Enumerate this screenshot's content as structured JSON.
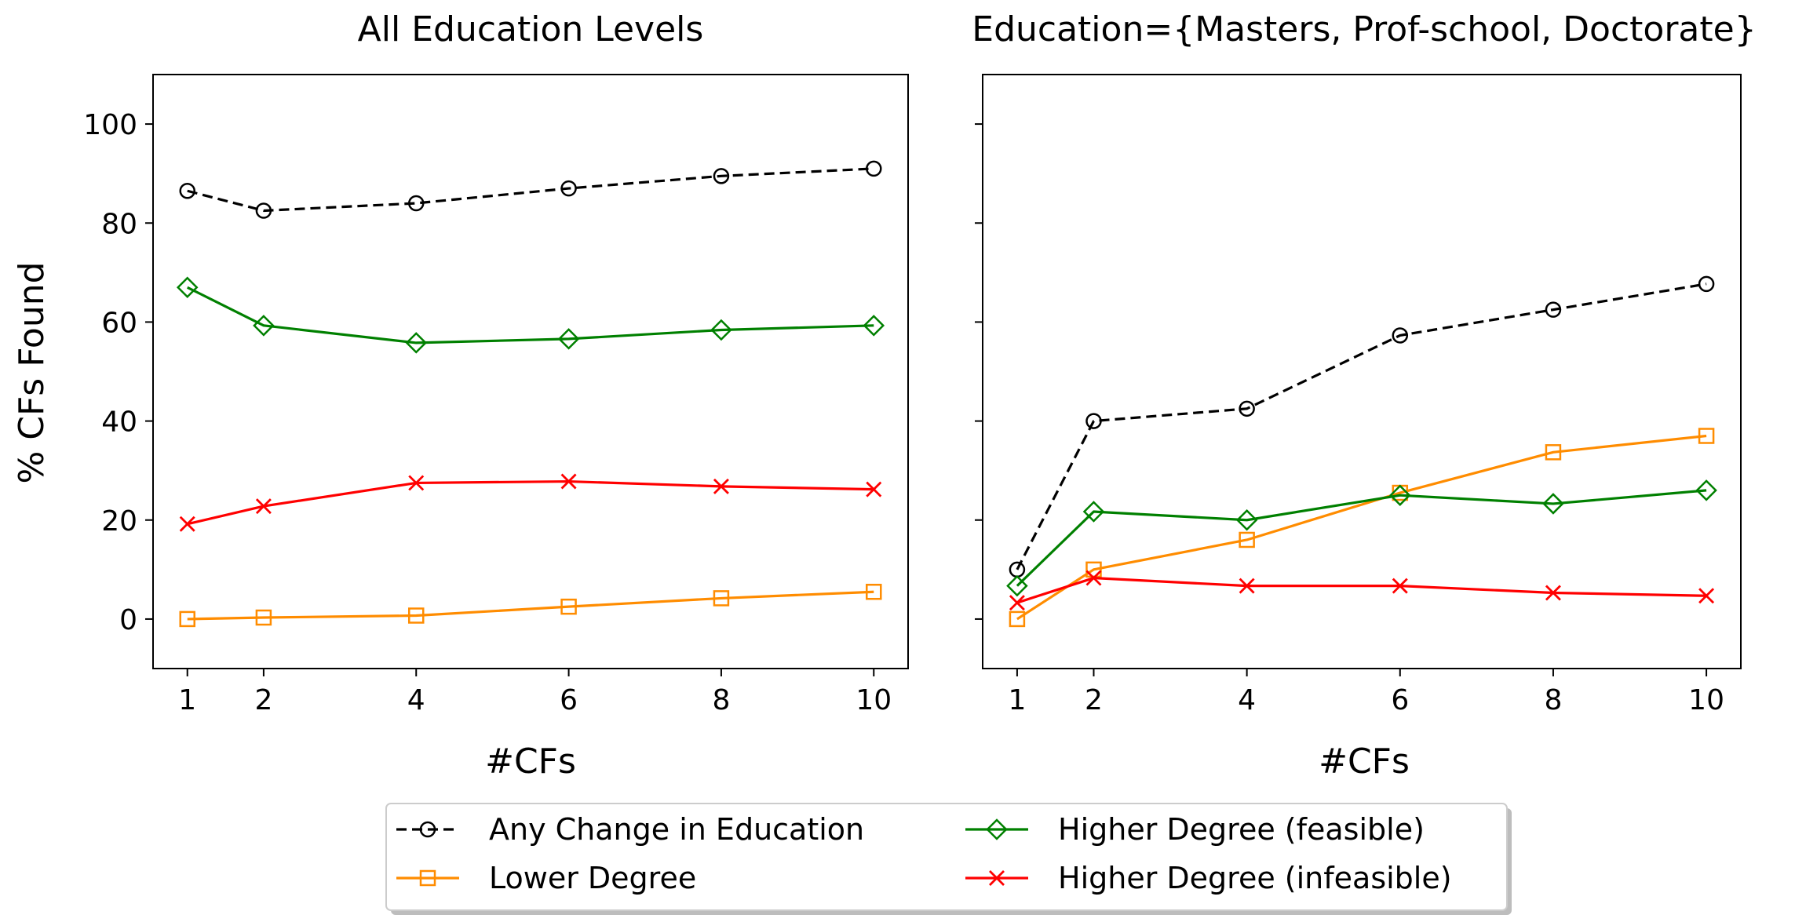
{
  "chart_data": [
    {
      "type": "line",
      "title": "All Education Levels",
      "xlabel": "#CFs",
      "ylabel": "% CFs Found",
      "x": [
        1,
        2,
        4,
        6,
        8,
        10
      ],
      "xticks": [
        "1",
        "2",
        "4",
        "6",
        "8",
        "10"
      ],
      "yticks": [
        "0",
        "20",
        "40",
        "60",
        "80",
        "100"
      ],
      "ylim": [
        -10,
        110
      ],
      "grid": false,
      "series": [
        {
          "name": "Any Change in Education",
          "color": "#000000",
          "marker": "circle",
          "dashed": true,
          "values": [
            86.5,
            82.5,
            84,
            87,
            89.5,
            91
          ]
        },
        {
          "name": "Lower Degree",
          "color": "#ff8c00",
          "marker": "square",
          "dashed": false,
          "values": [
            0,
            0.3,
            0.7,
            2.5,
            4.2,
            5.5
          ]
        },
        {
          "name": "Higher Degree (feasible)",
          "color": "#008000",
          "marker": "diamond",
          "dashed": false,
          "values": [
            67,
            59.3,
            55.8,
            56.6,
            58.4,
            59.3
          ]
        },
        {
          "name": "Higher Degree (infeasible)",
          "color": "#ff0000",
          "marker": "x",
          "dashed": false,
          "values": [
            19.2,
            22.8,
            27.5,
            27.8,
            26.8,
            26.2
          ]
        }
      ]
    },
    {
      "type": "line",
      "title": "Education={Masters, Prof-school, Doctorate}",
      "xlabel": "#CFs",
      "ylabel": "",
      "x": [
        1,
        2,
        4,
        6,
        8,
        10
      ],
      "xticks": [
        "1",
        "2",
        "4",
        "6",
        "8",
        "10"
      ],
      "yticks": [
        "0",
        "20",
        "40",
        "60",
        "80",
        "100"
      ],
      "ylim": [
        -10,
        110
      ],
      "grid": false,
      "series": [
        {
          "name": "Any Change in Education",
          "color": "#000000",
          "marker": "circle",
          "dashed": true,
          "values": [
            10,
            40,
            42.5,
            57.3,
            62.5,
            67.7
          ]
        },
        {
          "name": "Lower Degree",
          "color": "#ff8c00",
          "marker": "square",
          "dashed": false,
          "values": [
            0,
            10,
            16,
            25.5,
            33.7,
            37
          ]
        },
        {
          "name": "Higher Degree (feasible)",
          "color": "#008000",
          "marker": "diamond",
          "dashed": false,
          "values": [
            6.7,
            21.7,
            20,
            25,
            23.3,
            26
          ]
        },
        {
          "name": "Higher Degree (infeasible)",
          "color": "#ff0000",
          "marker": "x",
          "dashed": false,
          "values": [
            3.3,
            8.3,
            6.7,
            6.7,
            5.3,
            4.7
          ]
        }
      ]
    }
  ],
  "legend": {
    "placement": "bottom-center",
    "items": [
      "Any Change in Education",
      "Higher Degree (feasible)",
      "Lower Degree",
      "Higher Degree (infeasible)"
    ]
  }
}
